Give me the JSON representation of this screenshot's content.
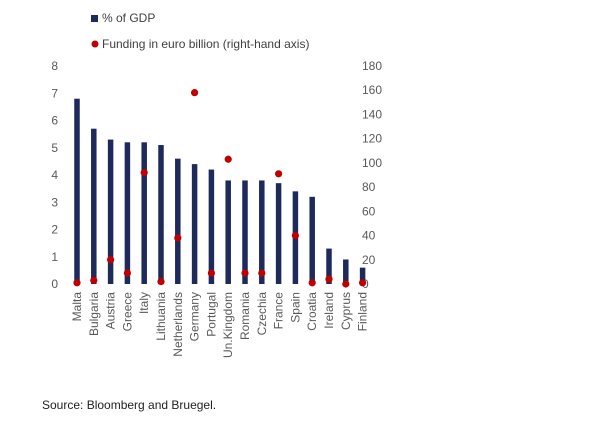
{
  "chart_data": {
    "type": "bar",
    "categories": [
      "Malta",
      "Bulgaria",
      "Austria",
      "Greece",
      "Italy",
      "Lithuania",
      "Netherlands",
      "Germany",
      "Portugal",
      "Un.Kingdom",
      "Romania",
      "Czechia",
      "France",
      "Spain",
      "Croatia",
      "Ireland",
      "Cyprus",
      "Finland"
    ],
    "series": [
      {
        "name": "% of GDP",
        "kind": "bar",
        "axis": "left",
        "color": "#1f2a5c",
        "values": [
          6.8,
          5.7,
          5.3,
          5.2,
          5.2,
          5.1,
          4.6,
          4.4,
          4.2,
          3.8,
          3.8,
          3.8,
          3.7,
          3.4,
          3.2,
          1.3,
          0.9,
          0.6
        ]
      },
      {
        "name": "Funding in euro billion (right-hand axis)",
        "kind": "scatter",
        "axis": "right",
        "color": "#c00000",
        "values": [
          1,
          3,
          20,
          9,
          92,
          2,
          38,
          158,
          9,
          103,
          9,
          9,
          91,
          40,
          1,
          4,
          0,
          1
        ]
      }
    ],
    "y_left": {
      "ylim": [
        0,
        8
      ],
      "ticks": [
        "0",
        "1",
        "2",
        "3",
        "4",
        "5",
        "6",
        "7",
        "8"
      ]
    },
    "y_right": {
      "ylim": [
        0,
        180
      ],
      "ticks": [
        "0",
        "20",
        "40",
        "60",
        "80",
        "100",
        "120",
        "140",
        "160",
        "180"
      ]
    },
    "legend_placement": "top-left",
    "grid": false
  },
  "source_text": "Source: Bloomberg and Bruegel."
}
